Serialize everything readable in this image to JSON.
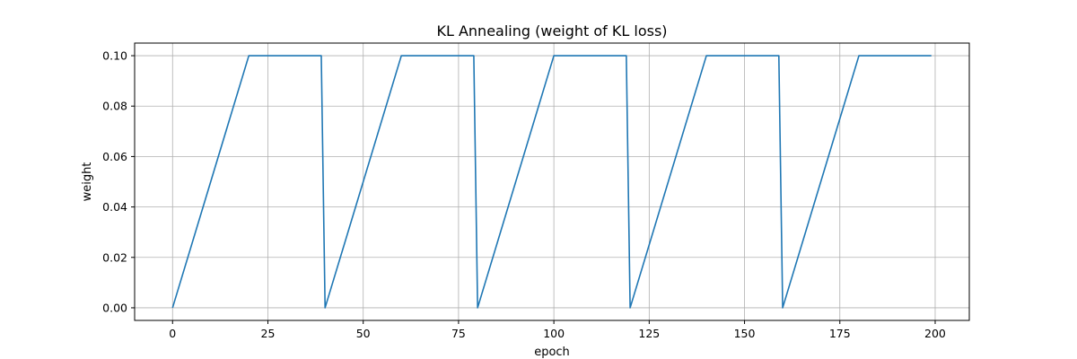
{
  "chart_data": {
    "type": "line",
    "title": "KL Annealing (weight of KL loss)",
    "xlabel": "epoch",
    "ylabel": "weight",
    "xlim": [
      -9.95,
      208.95
    ],
    "ylim": [
      -0.005,
      0.105
    ],
    "xticks": [
      0,
      25,
      50,
      75,
      100,
      125,
      150,
      175,
      200
    ],
    "yticks": [
      0.0,
      0.02,
      0.04,
      0.06,
      0.08,
      0.1
    ],
    "xtick_labels": [
      "0",
      "25",
      "50",
      "75",
      "100",
      "125",
      "150",
      "175",
      "200"
    ],
    "ytick_labels": [
      "0.00",
      "0.02",
      "0.04",
      "0.06",
      "0.08",
      "0.10"
    ],
    "grid": true,
    "colors": {
      "line": "#1f77b4"
    },
    "series": [
      {
        "points": [
          [
            0,
            0.0
          ],
          [
            20,
            0.1
          ],
          [
            39,
            0.1
          ],
          [
            40,
            0.0
          ],
          [
            60,
            0.1
          ],
          [
            79,
            0.1
          ],
          [
            80,
            0.0
          ],
          [
            100,
            0.1
          ],
          [
            119,
            0.1
          ],
          [
            120,
            0.0
          ],
          [
            140,
            0.1
          ],
          [
            159,
            0.1
          ],
          [
            160,
            0.0
          ],
          [
            180,
            0.1
          ],
          [
            199,
            0.1
          ]
        ]
      }
    ]
  }
}
